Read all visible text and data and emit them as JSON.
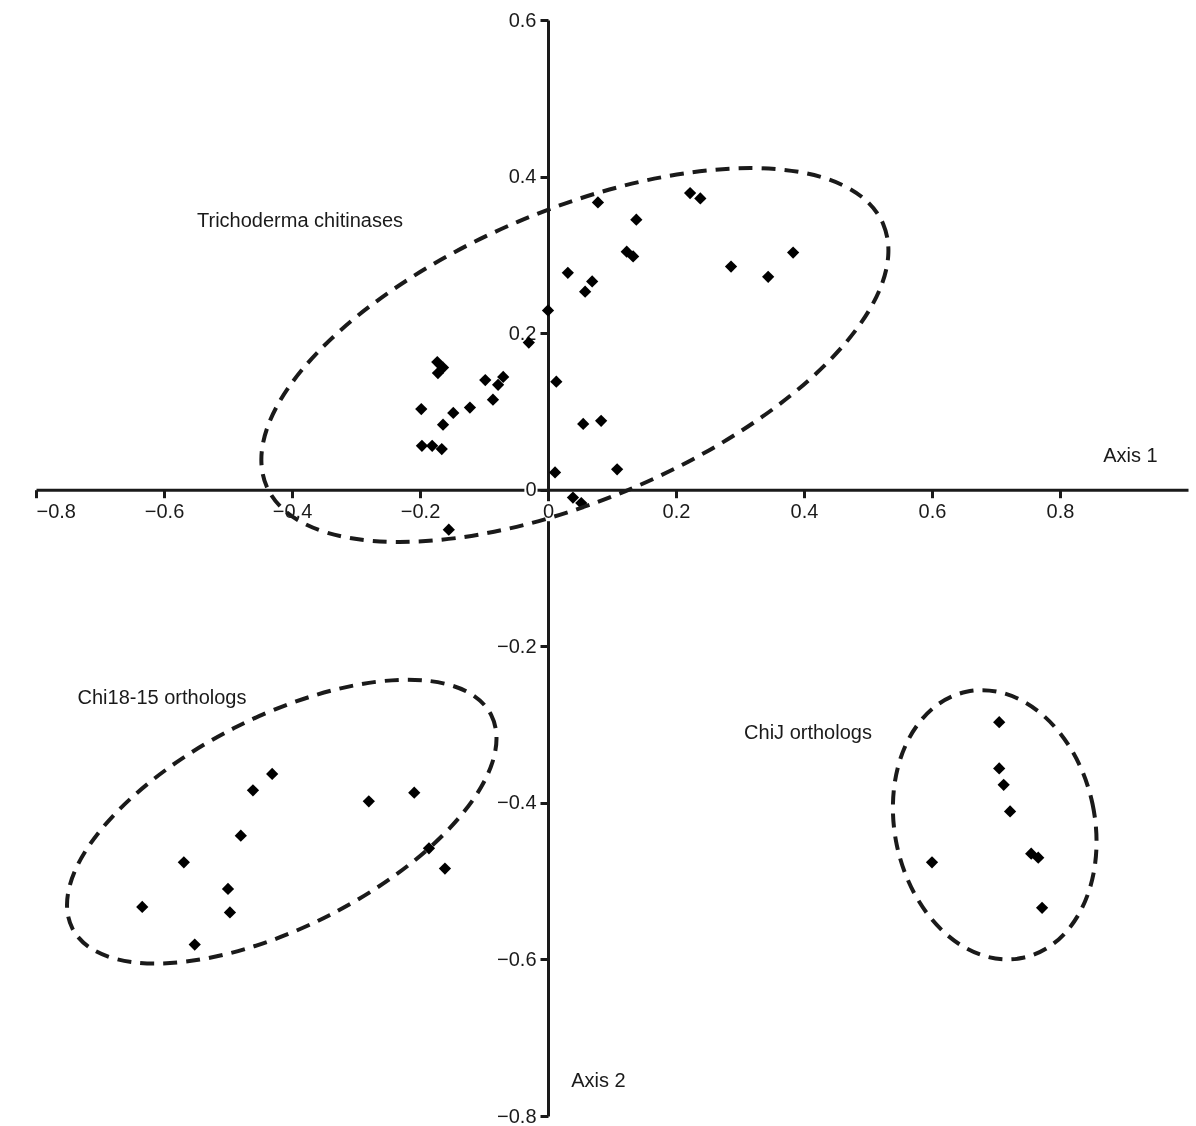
{
  "chart_data": {
    "type": "scatter",
    "xlabel": "Axis 1",
    "ylabel": "Axis 2",
    "marker": "diamond",
    "grid": false,
    "xlim": [
      -0.8,
      1.0
    ],
    "ylim": [
      -0.8,
      0.6
    ],
    "xticks": [
      {
        "value": -0.8,
        "label": "−0.8"
      },
      {
        "value": -0.6,
        "label": "−0.6"
      },
      {
        "value": -0.4,
        "label": "−0.4"
      },
      {
        "value": -0.2,
        "label": "−0.2"
      },
      0,
      0.2,
      0.4,
      0.6,
      0.8
    ],
    "yticks": [
      {
        "value": -0.8,
        "label": "−0.8"
      },
      {
        "value": -0.6,
        "label": "−0.6"
      },
      {
        "value": -0.4,
        "label": "−0.4"
      },
      {
        "value": -0.2,
        "label": "−0.2"
      },
      0,
      0.2,
      0.4,
      0.6
    ],
    "annotations": [
      "Trichoderma chitinases",
      "Chi18-15 orthologs",
      "ChiJ orthologs"
    ],
    "series": [
      {
        "color": "#000000",
        "x": [
          0.078,
          0.222,
          0.238,
          0.138,
          0.123,
          0.133,
          0.031,
          0.069,
          0.058,
          0,
          0.286,
          0.344,
          0.383,
          -0.03,
          0.013,
          -0.173,
          -0.164,
          -0.172,
          -0.098,
          -0.07,
          -0.078,
          -0.086,
          -0.122,
          -0.148,
          -0.198,
          -0.164,
          -0.197,
          -0.181,
          -0.166,
          0.055,
          0.083,
          0.011,
          0.108,
          0.039,
          0.052,
          -0.155,
          -0.431,
          -0.461,
          -0.48,
          -0.569,
          -0.634,
          -0.5,
          -0.497,
          -0.552,
          -0.28,
          -0.209,
          -0.186,
          -0.161,
          0.705,
          0.705,
          0.712,
          0.722,
          0.755,
          0.766,
          0.6,
          0.772
        ],
        "values": [
          0.367,
          0.379,
          0.372,
          0.345,
          0.304,
          0.298,
          0.277,
          0.266,
          0.253,
          0.229,
          0.285,
          0.272,
          0.303,
          0.188,
          0.138,
          0.163,
          0.156,
          0.149,
          0.14,
          0.144,
          0.134,
          0.115,
          0.105,
          0.098,
          0.103,
          0.083,
          0.056,
          0.056,
          0.052,
          0.084,
          0.088,
          0.022,
          0.026,
          -0.01,
          -0.017,
          -0.051,
          -0.363,
          -0.384,
          -0.442,
          -0.476,
          -0.533,
          -0.51,
          -0.54,
          -0.581,
          -0.398,
          -0.387,
          -0.458,
          -0.484,
          -0.297,
          -0.356,
          -0.377,
          -0.411,
          -0.465,
          -0.47,
          -0.476,
          -0.534
        ]
      }
    ]
  }
}
